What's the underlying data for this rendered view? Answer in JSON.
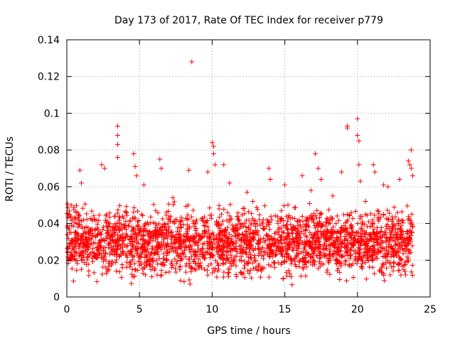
{
  "chart_data": {
    "type": "scatter",
    "title": "Day 173 of 2017, Rate Of TEC Index for receiver p779",
    "xlabel": "GPS time / hours",
    "ylabel": "ROTI / TECUs",
    "xlim": [
      0,
      25
    ],
    "ylim": [
      0,
      0.14
    ],
    "xticks": [
      0,
      5,
      10,
      15,
      20,
      25
    ],
    "xtick_labels": [
      "0",
      "5",
      "10",
      "15",
      "20",
      "25"
    ],
    "yticks": [
      0,
      0.02,
      0.04,
      0.06,
      0.08,
      0.1,
      0.12,
      0.14
    ],
    "ytick_labels": [
      "0",
      "0.02",
      "0.04",
      "0.06",
      "0.08",
      "0.1",
      "0.12",
      "0.14"
    ],
    "grid": true,
    "marker": "plus",
    "color": "#ff0000",
    "x_range_of_data": [
      0,
      23.8
    ],
    "baseline_band": [
      0.005,
      0.05
    ],
    "series": [
      {
        "points": [
          [
            0.1,
            0.045
          ],
          [
            0.3,
            0.05
          ],
          [
            0.9,
            0.069
          ],
          [
            1.0,
            0.062
          ],
          [
            2.4,
            0.072
          ],
          [
            2.6,
            0.07
          ],
          [
            3.5,
            0.093
          ],
          [
            3.5,
            0.088
          ],
          [
            3.5,
            0.083
          ],
          [
            3.5,
            0.076
          ],
          [
            4.6,
            0.078
          ],
          [
            4.7,
            0.071
          ],
          [
            4.8,
            0.066
          ],
          [
            6.4,
            0.075
          ],
          [
            6.5,
            0.07
          ],
          [
            7.3,
            0.054
          ],
          [
            8.4,
            0.069
          ],
          [
            8.6,
            0.128
          ],
          [
            9.7,
            0.068
          ],
          [
            10.0,
            0.084
          ],
          [
            10.1,
            0.082
          ],
          [
            10.1,
            0.078
          ],
          [
            10.2,
            0.072
          ],
          [
            10.8,
            0.072
          ],
          [
            11.2,
            0.062
          ],
          [
            12.4,
            0.057
          ],
          [
            13.9,
            0.07
          ],
          [
            14.0,
            0.064
          ],
          [
            15.0,
            0.061
          ],
          [
            16.2,
            0.066
          ],
          [
            17.1,
            0.078
          ],
          [
            17.3,
            0.07
          ],
          [
            17.5,
            0.064
          ],
          [
            18.9,
            0.068
          ],
          [
            19.3,
            0.093
          ],
          [
            19.3,
            0.092
          ],
          [
            20.0,
            0.097
          ],
          [
            20.0,
            0.088
          ],
          [
            20.1,
            0.085
          ],
          [
            20.1,
            0.072
          ],
          [
            20.2,
            0.063
          ],
          [
            21.1,
            0.072
          ],
          [
            21.2,
            0.068
          ],
          [
            21.8,
            0.061
          ],
          [
            22.9,
            0.064
          ],
          [
            23.5,
            0.074
          ],
          [
            23.6,
            0.072
          ],
          [
            23.7,
            0.08
          ],
          [
            23.7,
            0.07
          ],
          [
            23.8,
            0.066
          ],
          [
            5.3,
            0.061
          ],
          [
            12.8,
            0.052
          ],
          [
            16.8,
            0.058
          ],
          [
            18.3,
            0.055
          ],
          [
            22.1,
            0.06
          ]
        ]
      }
    ]
  }
}
